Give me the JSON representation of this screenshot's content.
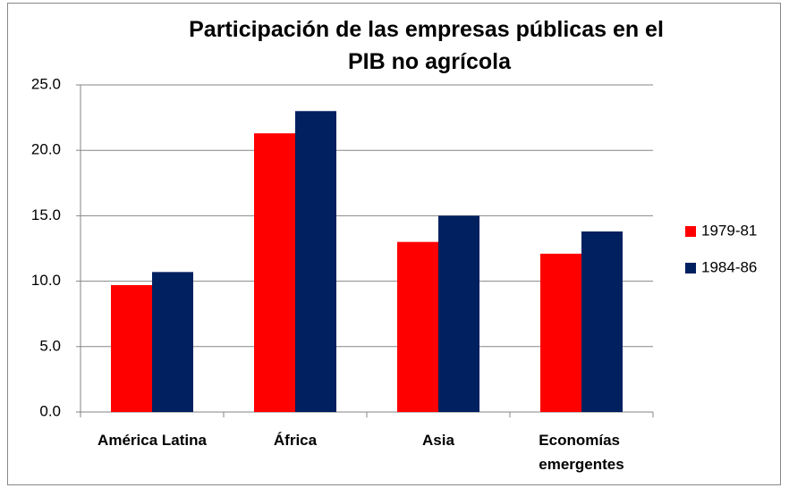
{
  "chart_data": {
    "type": "bar",
    "title": "Participación de las empresas públicas en el PIB no agrícola",
    "categories": [
      "América Latina",
      "África",
      "Asia",
      "Economías emergentes"
    ],
    "series": [
      {
        "name": "1979-81",
        "color": "#ff0000",
        "values": [
          9.7,
          21.3,
          13.0,
          12.1
        ]
      },
      {
        "name": "1984-86",
        "color": "#002060",
        "values": [
          10.7,
          23.0,
          15.0,
          13.8
        ]
      }
    ],
    "ylim": [
      0,
      25
    ],
    "yticks": [
      {
        "value": 0,
        "label": "0.0"
      },
      {
        "value": 5,
        "label": "5.0"
      },
      {
        "value": 10,
        "label": "10.0"
      },
      {
        "value": 15,
        "label": "15.0"
      },
      {
        "value": 20,
        "label": "20.0"
      },
      {
        "value": 25,
        "label": "25.0"
      }
    ],
    "grid": true,
    "legend": "right"
  }
}
